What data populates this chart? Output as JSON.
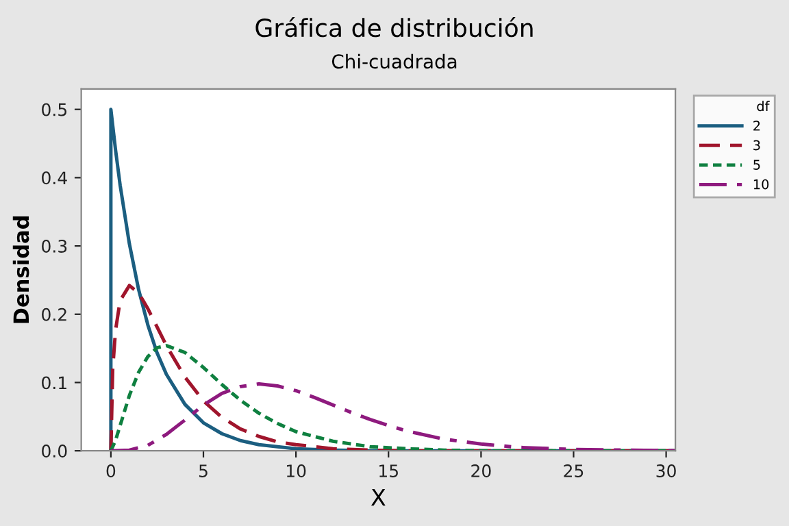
{
  "chart_data": {
    "type": "line",
    "title": "Gráfica de distribución",
    "subtitle": "Chi-cuadrada",
    "xlabel": "X",
    "ylabel": "Densidad",
    "legend_title": "df",
    "legend": "right",
    "grid": false,
    "marker": "none",
    "xlim": [
      -1.6,
      30.5
    ],
    "ylim": [
      0,
      0.53
    ],
    "xticks": [
      0,
      5,
      10,
      15,
      20,
      25,
      30
    ],
    "yticks": [
      {
        "value": 0,
        "label": "0.0"
      },
      0.1,
      0.2,
      0.3,
      0.4,
      0.5
    ],
    "series": [
      {
        "name": "2",
        "color": "#1b5e80",
        "line_style": "solid",
        "x": [
          0,
          0,
          0.25,
          0.5,
          1,
          1.5,
          2,
          2.5,
          3,
          4,
          5,
          6,
          7,
          8,
          9,
          10,
          12,
          14,
          16,
          20,
          25,
          30.5
        ],
        "values": [
          0,
          0.5,
          0.441,
          0.389,
          0.303,
          0.236,
          0.184,
          0.143,
          0.112,
          0.068,
          0.041,
          0.025,
          0.015,
          0.009,
          0.006,
          0.003,
          0.001,
          0,
          0,
          0,
          0,
          0
        ]
      },
      {
        "name": "3",
        "color": "#a0152c",
        "line_style": "dashed",
        "x": [
          0,
          0.1,
          0.25,
          0.5,
          1,
          1.5,
          2,
          2.5,
          3,
          4,
          5,
          6,
          7,
          8,
          9,
          10,
          12,
          14,
          16,
          20,
          25,
          30.5
        ],
        "values": [
          0,
          0.12,
          0.176,
          0.22,
          0.242,
          0.231,
          0.208,
          0.181,
          0.154,
          0.108,
          0.073,
          0.049,
          0.032,
          0.021,
          0.013,
          0.009,
          0.003,
          0.001,
          0,
          0,
          0,
          0
        ]
      },
      {
        "name": "5",
        "color": "#0f8040",
        "line_style": "dotted",
        "x": [
          0,
          0.25,
          0.5,
          1,
          1.5,
          2,
          2.5,
          3,
          4,
          5,
          6,
          7,
          8,
          9,
          10,
          12,
          14,
          16,
          18,
          20,
          25,
          30.5
        ],
        "values": [
          0,
          0.015,
          0.037,
          0.081,
          0.115,
          0.138,
          0.151,
          0.154,
          0.144,
          0.122,
          0.097,
          0.074,
          0.055,
          0.04,
          0.028,
          0.014,
          0.006,
          0.003,
          0.001,
          0,
          0,
          0
        ]
      },
      {
        "name": "10",
        "color": "#8e1a7e",
        "line_style": "dashdot",
        "x": [
          0,
          1,
          2,
          3,
          4,
          5,
          6,
          7,
          8,
          9,
          10,
          11,
          12,
          13,
          14,
          15,
          16,
          18,
          20,
          22,
          25,
          28,
          30.5
        ],
        "values": [
          0,
          0.001,
          0.008,
          0.024,
          0.045,
          0.067,
          0.084,
          0.094,
          0.098,
          0.095,
          0.088,
          0.078,
          0.067,
          0.056,
          0.046,
          0.037,
          0.029,
          0.017,
          0.01,
          0.005,
          0.002,
          0.001,
          0
        ]
      }
    ]
  }
}
